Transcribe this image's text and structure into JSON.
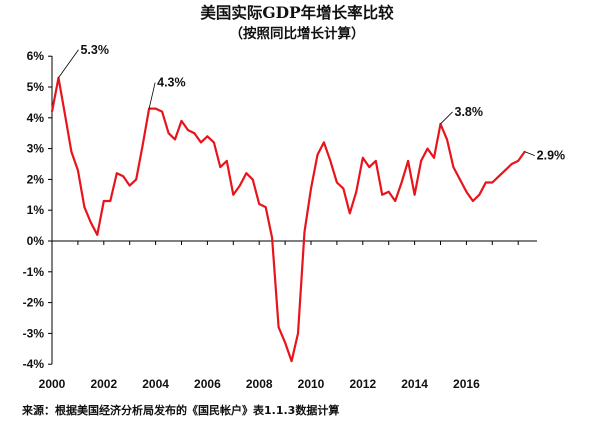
{
  "chart_data": {
    "type": "line",
    "title": "美国实际GDP年增长率比较",
    "subtitle": "（按照同比增长计算）",
    "xlabel": "",
    "ylabel": "",
    "ylim": [
      -4,
      6
    ],
    "y_ticks": [
      "6%",
      "5%",
      "4%",
      "3%",
      "2%",
      "1%",
      "0%",
      "-1%",
      "-2%",
      "-3%",
      "-4%"
    ],
    "x_ticks": [
      "2000",
      "2002",
      "2004",
      "2006",
      "2008",
      "2010",
      "2012",
      "2014",
      "2016"
    ],
    "grid": false,
    "legend": "none",
    "line_color": "#e8141c",
    "series": [
      {
        "x": [
          "2000Q1",
          "2000Q2",
          "2000Q3",
          "2000Q4",
          "2001Q1",
          "2001Q2",
          "2001Q3",
          "2001Q4",
          "2002Q1",
          "2002Q2",
          "2002Q3",
          "2002Q4",
          "2003Q1",
          "2003Q2",
          "2003Q3",
          "2003Q4",
          "2004Q1",
          "2004Q2",
          "2004Q3",
          "2004Q4",
          "2005Q1",
          "2005Q2",
          "2005Q3",
          "2005Q4",
          "2006Q1",
          "2006Q2",
          "2006Q3",
          "2006Q4",
          "2007Q1",
          "2007Q2",
          "2007Q3",
          "2007Q4",
          "2008Q1",
          "2008Q2",
          "2008Q3",
          "2008Q4",
          "2009Q1",
          "2009Q2",
          "2009Q3",
          "2009Q4",
          "2010Q1",
          "2010Q2",
          "2010Q3",
          "2010Q4",
          "2011Q1",
          "2011Q2",
          "2011Q3",
          "2011Q4",
          "2012Q1",
          "2012Q2",
          "2012Q3",
          "2012Q4",
          "2013Q1",
          "2013Q2",
          "2013Q3",
          "2013Q4",
          "2014Q1",
          "2014Q2",
          "2014Q3",
          "2014Q4",
          "2015Q1",
          "2015Q2",
          "2015Q3",
          "2015Q4",
          "2016Q1",
          "2016Q2",
          "2016Q3",
          "2016Q4",
          "2017Q1",
          "2017Q2",
          "2017Q3",
          "2017Q4",
          "2018Q1",
          "2018Q2"
        ],
        "values": [
          4.2,
          5.3,
          4.1,
          2.9,
          2.3,
          1.1,
          0.6,
          0.2,
          1.3,
          1.3,
          2.2,
          2.1,
          1.8,
          2.0,
          3.1,
          4.3,
          4.3,
          4.2,
          3.5,
          3.3,
          3.9,
          3.6,
          3.5,
          3.2,
          3.4,
          3.2,
          2.4,
          2.6,
          1.5,
          1.8,
          2.2,
          2.0,
          1.2,
          1.1,
          0.1,
          -2.8,
          -3.3,
          -3.9,
          -3.0,
          0.3,
          1.7,
          2.8,
          3.2,
          2.6,
          1.9,
          1.7,
          0.9,
          1.6,
          2.7,
          2.4,
          2.6,
          1.5,
          1.6,
          1.3,
          1.9,
          2.6,
          1.5,
          2.6,
          3.0,
          2.7,
          3.8,
          3.3,
          2.4,
          2.0,
          1.6,
          1.3,
          1.5,
          1.9,
          1.9,
          2.1,
          2.3,
          2.5,
          2.6,
          2.9
        ]
      }
    ],
    "annotations": [
      {
        "text": "5.3%",
        "x": "2000Q2",
        "value": 5.3
      },
      {
        "text": "4.3%",
        "x": "2003Q4",
        "value": 4.3
      },
      {
        "text": "3.8%",
        "x": "2015Q1",
        "value": 3.8
      },
      {
        "text": "2.9%",
        "x": "2018Q2",
        "value": 2.9
      }
    ]
  },
  "source_note": "来源：根据美国经济分析局发布的《国民帐户》表1.1.3数据计算"
}
